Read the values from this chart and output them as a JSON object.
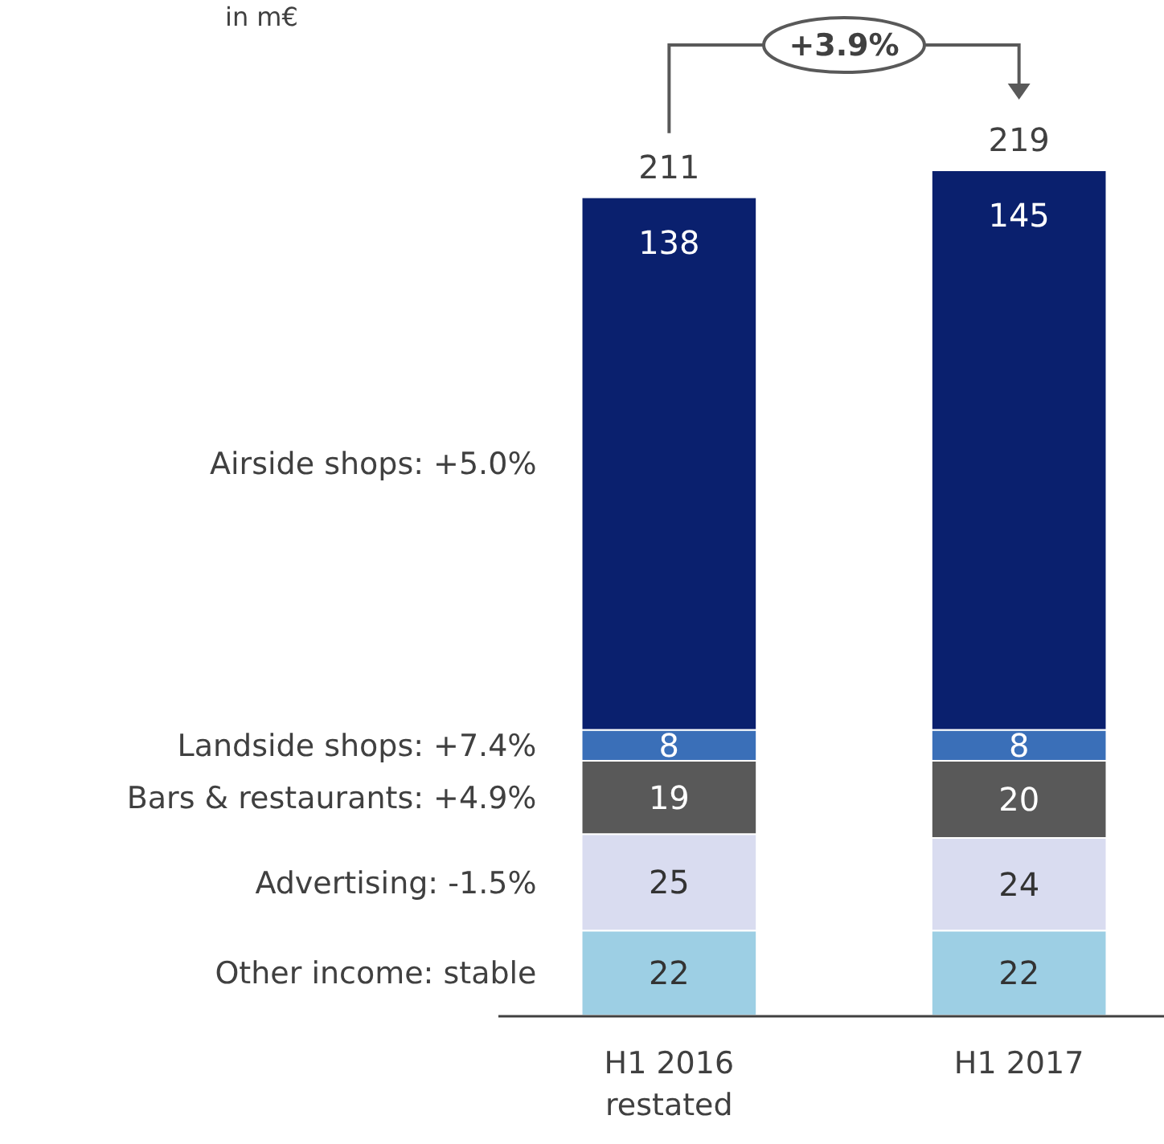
{
  "chart_data": {
    "type": "bar",
    "subtitle": "in m€",
    "stacked": true,
    "data_labels": true,
    "categories": [
      "H1 2016\nrestated",
      "H1 2017"
    ],
    "series": [
      {
        "name": "Other income: stable",
        "color": "#9dcfe4",
        "values": [
          22,
          22
        ]
      },
      {
        "name": "Advertising: -1.5%",
        "color": "#d9dcf0",
        "values": [
          25,
          24
        ]
      },
      {
        "name": "Bars & restaurants: +4.9%",
        "color": "#595959",
        "values": [
          19,
          20
        ]
      },
      {
        "name": "Landside shops: +7.4%",
        "color": "#3a6fb8",
        "values": [
          8,
          8
        ]
      },
      {
        "name": "Airside shops: +5.0%",
        "color": "#0a206e",
        "values": [
          138,
          145
        ]
      }
    ],
    "totals": [
      "211",
      "219"
    ],
    "annotations": [
      "+3.9%"
    ]
  }
}
